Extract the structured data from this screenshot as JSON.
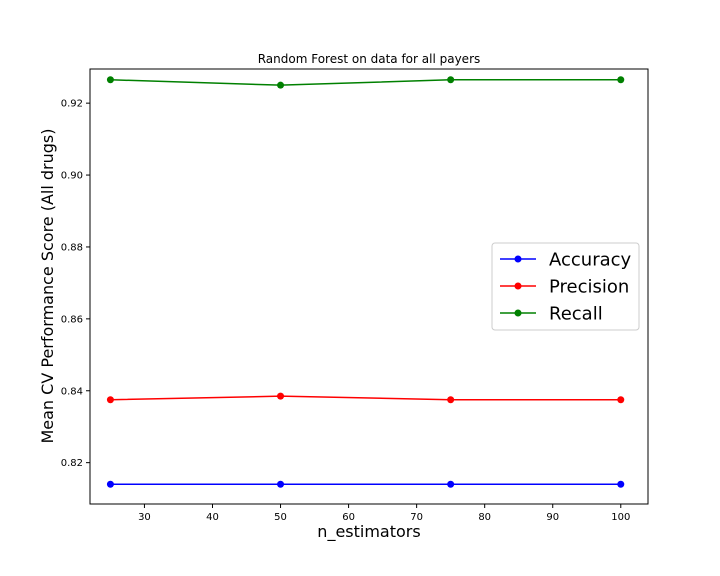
{
  "chart_data": {
    "type": "line",
    "title": "Random Forest on data for all payers",
    "xlabel": "n_estimators",
    "ylabel": "Mean CV Performance Score (All drugs)",
    "x": [
      25,
      50,
      75,
      100
    ],
    "xlim": [
      22,
      104
    ],
    "ylim": [
      0.8085,
      0.9295
    ],
    "xticks": [
      30,
      40,
      50,
      60,
      70,
      80,
      90,
      100
    ],
    "yticks": [
      0.82,
      0.84,
      0.86,
      0.88,
      0.9,
      0.92
    ],
    "xtick_labels": [
      "30",
      "40",
      "50",
      "60",
      "70",
      "80",
      "90",
      "100"
    ],
    "ytick_labels": [
      "0.82",
      "0.84",
      "0.86",
      "0.88",
      "0.90",
      "0.92"
    ],
    "grid": false,
    "legend_position": "center-right",
    "series": [
      {
        "name": "Accuracy",
        "color": "#0000ff",
        "marker": "circle",
        "values": [
          0.814,
          0.814,
          0.814,
          0.814
        ]
      },
      {
        "name": "Precision",
        "color": "#ff0000",
        "marker": "circle",
        "values": [
          0.8375,
          0.8385,
          0.8375,
          0.8375
        ]
      },
      {
        "name": "Recall",
        "color": "#008000",
        "marker": "circle",
        "values": [
          0.9265,
          0.925,
          0.9265,
          0.9265
        ]
      }
    ]
  }
}
